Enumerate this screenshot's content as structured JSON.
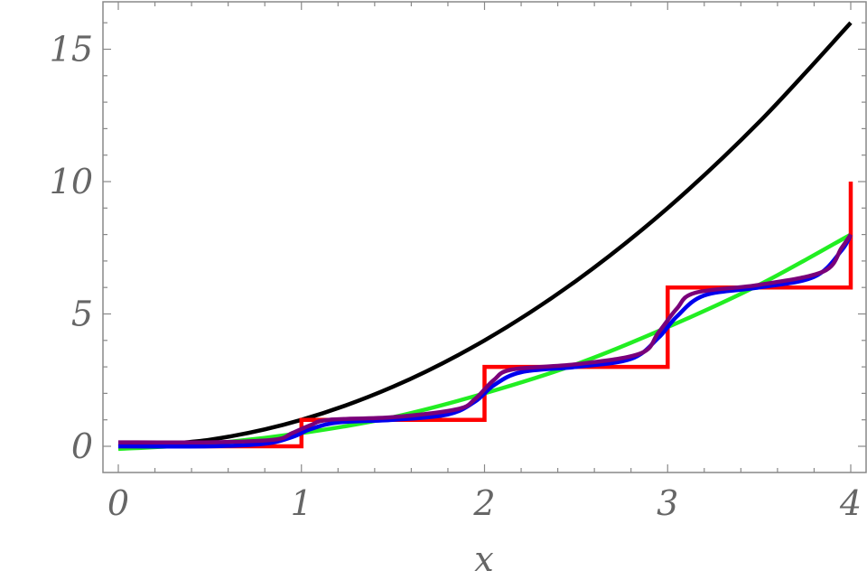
{
  "chart_data": {
    "type": "line",
    "title": "",
    "xlabel": "x",
    "ylabel": "",
    "xlim": [
      0,
      4
    ],
    "ylim": [
      -1,
      16.7
    ],
    "xticks": [
      0,
      1,
      2,
      3,
      4
    ],
    "xtick_labels": [
      "0",
      "1",
      "2",
      "3",
      "4"
    ],
    "yticks": [
      0,
      5,
      10,
      15
    ],
    "ytick_labels": [
      "0",
      "5",
      "10",
      "15"
    ],
    "grid": false,
    "legend": "none",
    "series": [
      {
        "color": "#000000",
        "x": [
          0,
          0.5,
          1,
          1.5,
          2,
          2.5,
          3,
          3.5,
          4
        ],
        "y": [
          0,
          0.25,
          1,
          2.25,
          4,
          6.25,
          9,
          12.25,
          16
        ]
      },
      {
        "color": "#22ee22",
        "x": [
          0,
          0.5,
          1,
          1.5,
          2,
          2.5,
          3,
          3.5,
          4
        ],
        "y": [
          -0.1,
          0.1,
          0.5,
          1.1,
          2,
          3.1,
          4.5,
          6.1,
          8
        ]
      },
      {
        "color": "#ff0000",
        "x": [
          0,
          1,
          1,
          2,
          2,
          3,
          3,
          4,
          4
        ],
        "y": [
          0,
          0,
          1,
          1,
          3,
          3,
          6,
          6,
          10
        ]
      },
      {
        "color": "#0000ee",
        "x": [
          0,
          0.5,
          0.8,
          0.95,
          1.05,
          1.2,
          1.5,
          1.8,
          1.95,
          2.05,
          2.2,
          2.5,
          2.8,
          2.95,
          3.05,
          3.2,
          3.5,
          3.8,
          3.95,
          4
        ],
        "y": [
          0,
          0,
          0.1,
          0.35,
          0.65,
          0.9,
          1,
          1.2,
          1.7,
          2.3,
          2.8,
          3,
          3.3,
          4.1,
          4.9,
          5.7,
          6,
          6.4,
          7.4,
          8
        ]
      },
      {
        "color": "#7a007a",
        "x": [
          0,
          0.5,
          0.85,
          0.95,
          1.05,
          1.15,
          1.5,
          1.85,
          1.95,
          2.05,
          2.15,
          2.5,
          2.85,
          2.95,
          3.05,
          3.15,
          3.5,
          3.85,
          3.95,
          4
        ],
        "y": [
          0.15,
          0.15,
          0.25,
          0.5,
          0.8,
          1,
          1.1,
          1.4,
          1.8,
          2.5,
          2.9,
          3.1,
          3.5,
          4.3,
          5.2,
          5.8,
          6.1,
          6.6,
          7.5,
          8
        ]
      }
    ]
  }
}
